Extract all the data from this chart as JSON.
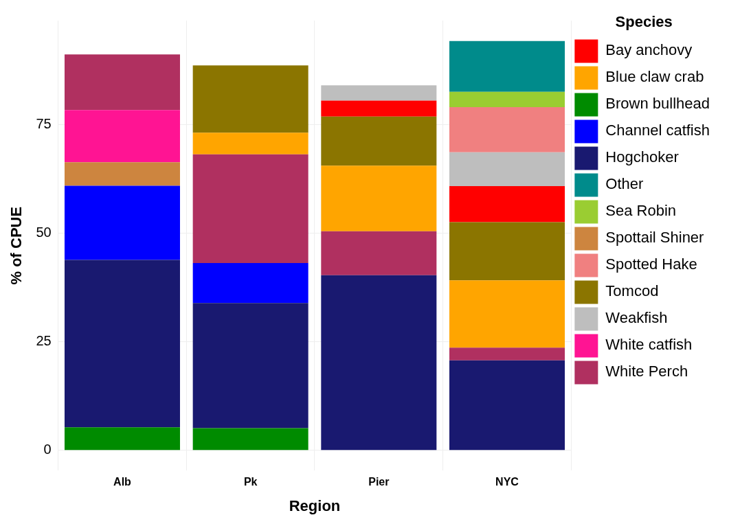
{
  "chart_data": {
    "type": "bar",
    "stacked": true,
    "xlabel": "Region",
    "ylabel": "% of CPUE",
    "legend_title": "Species",
    "legend": "right",
    "grid": true,
    "categories": [
      "Alb",
      "Pk",
      "Pier",
      "NYC"
    ],
    "ylim": [
      -4.7,
      98.9
    ],
    "yticks": [
      0,
      25,
      50,
      75
    ],
    "series": [
      {
        "name": "Brown bullhead",
        "color": "#008b00",
        "values": [
          5.3,
          5.1,
          null,
          null
        ]
      },
      {
        "name": "Hogchoker",
        "color": "#191970",
        "values": [
          38.5,
          28.8,
          40.3,
          20.7
        ]
      },
      {
        "name": "Channel catfish",
        "color": "#0000ff",
        "values": [
          17.1,
          9.2,
          null,
          null
        ]
      },
      {
        "name": "Spottail Shiner",
        "color": "#cd853f",
        "values": [
          5.4,
          null,
          null,
          null
        ]
      },
      {
        "name": "White catfish",
        "color": "#ff1493",
        "values": [
          12.0,
          null,
          null,
          null
        ]
      },
      {
        "name": "White Perch",
        "color": "#b03060",
        "values": [
          12.8,
          25.0,
          10.1,
          2.9
        ]
      },
      {
        "name": "Blue claw crab",
        "color": "#ffa500",
        "values": [
          null,
          5.0,
          15.1,
          15.5
        ]
      },
      {
        "name": "Tomcod",
        "color": "#8b7500",
        "values": [
          null,
          15.5,
          11.3,
          13.4
        ]
      },
      {
        "name": "Bay anchovy",
        "color": "#ff0000",
        "values": [
          null,
          null,
          3.7,
          8.3
        ]
      },
      {
        "name": "Weakfish",
        "color": "#bebebe",
        "values": [
          null,
          null,
          3.5,
          7.8
        ]
      },
      {
        "name": "Spotted Hake",
        "color": "#f08080",
        "values": [
          null,
          null,
          null,
          10.4
        ]
      },
      {
        "name": "Sea Robin",
        "color": "#9acd32",
        "values": [
          null,
          null,
          null,
          3.5
        ]
      },
      {
        "name": "Other",
        "color": "#008b8b",
        "values": [
          null,
          null,
          null,
          11.7
        ]
      }
    ]
  }
}
